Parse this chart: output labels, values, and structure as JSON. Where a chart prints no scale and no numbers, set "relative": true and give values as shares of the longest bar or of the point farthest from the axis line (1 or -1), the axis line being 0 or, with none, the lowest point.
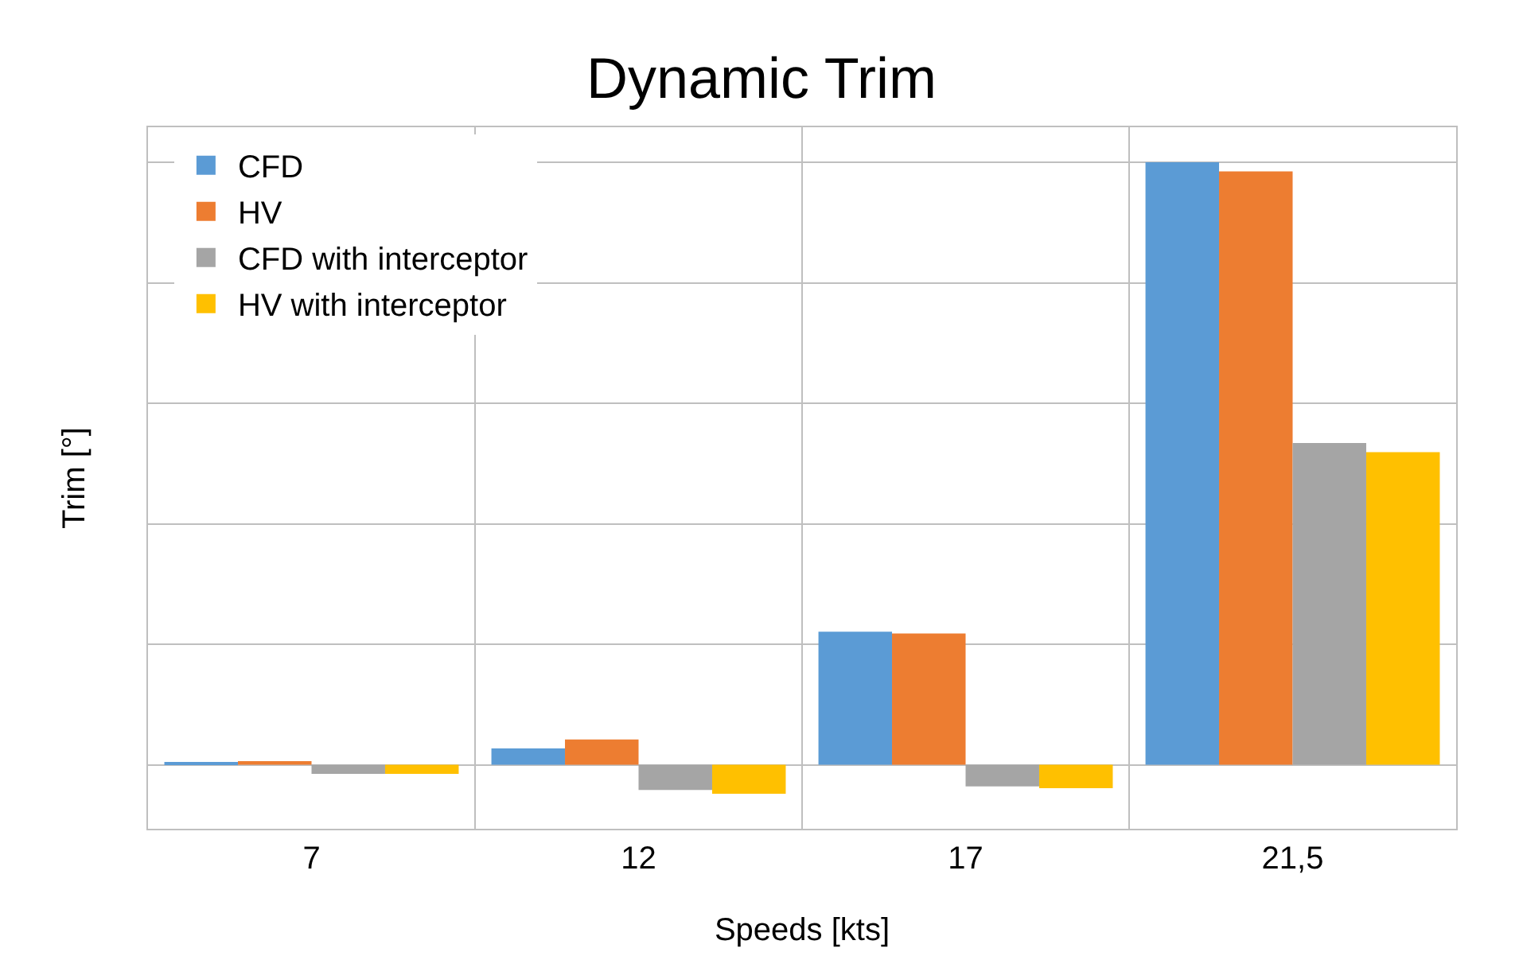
{
  "chart_data": {
    "type": "bar",
    "title": "Dynamic Trim",
    "xlabel": "Speeds [kts]",
    "ylabel": "Trim [°]",
    "categories": [
      "7",
      "12",
      "17",
      "21,5"
    ],
    "relative": true,
    "grid": true,
    "legend": "top left",
    "series": [
      {
        "name": "CFD",
        "color": "#5b9bd5",
        "values": [
          0.003,
          0.027,
          0.221,
          1
        ]
      },
      {
        "name": "HV",
        "color": "#ed7d31",
        "values": [
          0.006,
          0.042,
          0.218,
          0.985
        ]
      },
      {
        "name": "CFD with interceptor",
        "color": "#a5a5a5",
        "values": [
          -0.015,
          -0.042,
          -0.036,
          0.534
        ]
      },
      {
        "name": "HV with interceptor",
        "color": "#ffc000",
        "values": [
          -0.015,
          -0.048,
          -0.039,
          0.519
        ]
      }
    ]
  }
}
